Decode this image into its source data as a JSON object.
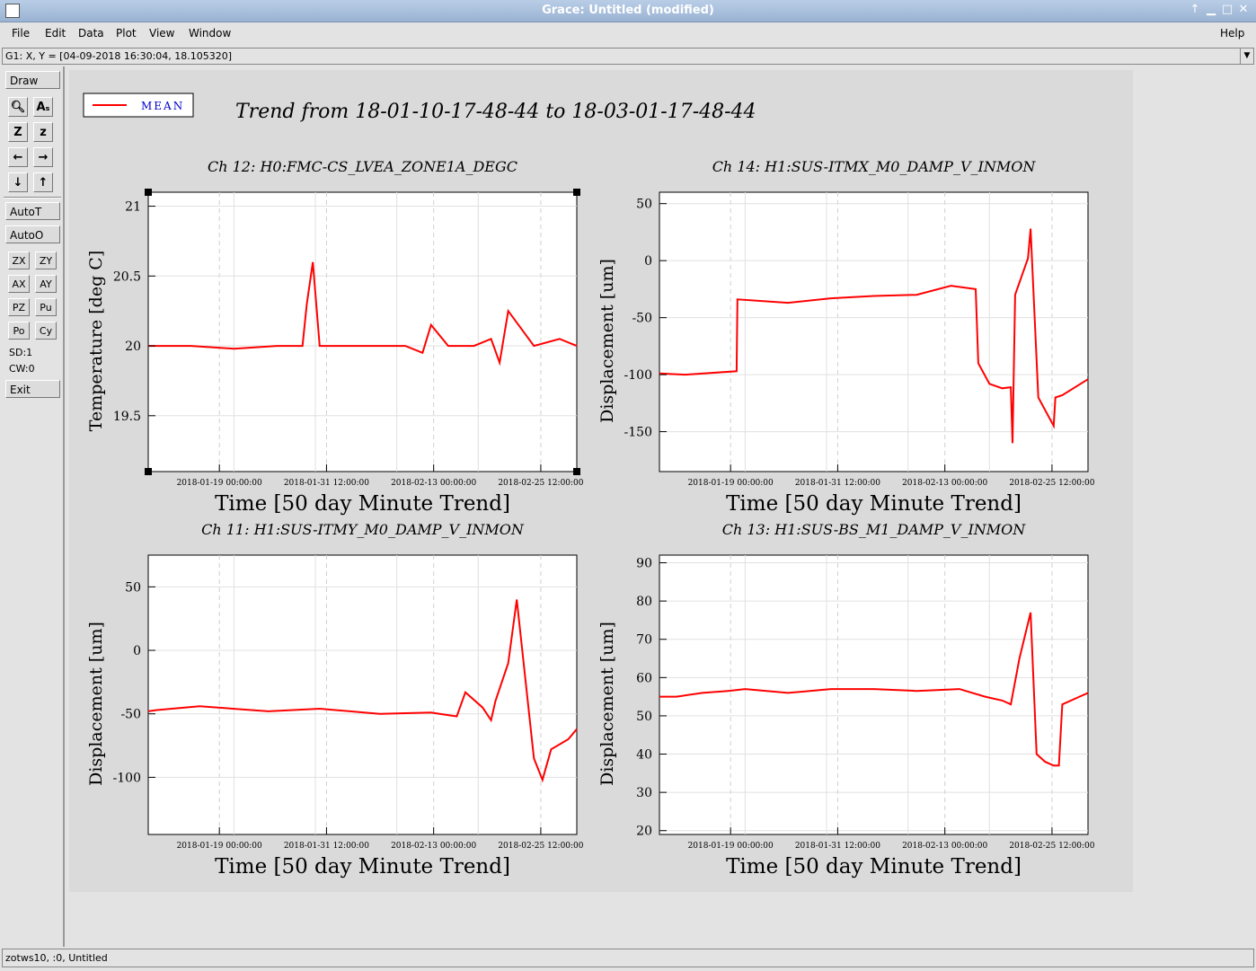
{
  "window": {
    "title": "Grace: Untitled (modified)"
  },
  "menu": {
    "file": "File",
    "edit": "Edit",
    "data": "Data",
    "plot": "Plot",
    "view": "View",
    "window": "Window",
    "help": "Help"
  },
  "locator": "G1: X, Y = [04-09-2018 16:30:04, 18.105320]",
  "status": "zotws10, :0, Untitled",
  "toolbar": {
    "draw": "Draw",
    "autot": "AutoT",
    "autoo": "AutoO",
    "zx": "ZX",
    "zy": "ZY",
    "ax": "AX",
    "ay": "AY",
    "pz": "PZ",
    "pu": "Pu",
    "po": "Po",
    "cy": "Cy",
    "sd": "SD:1",
    "cw": "CW:0",
    "exit": "Exit"
  },
  "legend": {
    "label": "MEAN"
  },
  "page_title": "Trend from 18-01-10-17-48-44 to 18-03-01-17-48-44",
  "colors": {
    "series": "#ff0000",
    "legend_text": "#0000cc",
    "canvas": "#dadada"
  },
  "chart_data": [
    {
      "type": "line",
      "title": "Ch 12: H0:FMC-CS_LVEA_ZONE1A_DEGC",
      "xlabel": "Time [50 day Minute Trend]",
      "ylabel": "Temperature [deg C]",
      "xticks": [
        "2018-01-19 00:00:00",
        "2018-01-31 12:00:00",
        "2018-02-13 00:00:00",
        "2018-02-25 12:00:00"
      ],
      "yticks": [
        19.5,
        20,
        20.5,
        21
      ],
      "ylim": [
        19.1,
        21.1
      ],
      "xlim_days": [
        0,
        50
      ],
      "grid": true,
      "series": [
        {
          "name": "MEAN",
          "x_days": [
            0,
            5,
            10,
            15,
            18,
            18.5,
            19.2,
            20,
            25,
            30,
            32,
            33,
            35,
            38,
            40,
            41,
            42,
            45,
            48,
            50
          ],
          "values": [
            20.0,
            20.0,
            19.98,
            20.0,
            20.0,
            20.3,
            20.6,
            20.0,
            20.0,
            20.0,
            19.95,
            20.15,
            20.0,
            20.0,
            20.05,
            19.88,
            20.25,
            20.0,
            20.05,
            20.0
          ]
        }
      ]
    },
    {
      "type": "line",
      "title": "Ch 14: H1:SUS-ITMX_M0_DAMP_V_INMON",
      "xlabel": "Time [50 day Minute Trend]",
      "ylabel": "Displacement [um]",
      "xticks": [
        "2018-01-19 00:00:00",
        "2018-01-31 12:00:00",
        "2018-02-13 00:00:00",
        "2018-02-25 12:00:00"
      ],
      "yticks": [
        -150,
        -100,
        -50,
        0,
        50
      ],
      "ylim": [
        -185,
        60
      ],
      "xlim_days": [
        0,
        50
      ],
      "grid": true,
      "series": [
        {
          "name": "MEAN",
          "x_days": [
            0,
            3,
            9,
            9.1,
            15,
            20,
            25,
            30,
            34,
            36.9,
            37.2,
            38.5,
            40,
            41,
            41.2,
            41.5,
            43,
            43.3,
            44.2,
            46,
            46.2,
            47,
            50
          ],
          "values": [
            -99,
            -100,
            -97,
            -34,
            -37,
            -33,
            -31,
            -30,
            -22,
            -25,
            -90,
            -108,
            -112,
            -111,
            -160,
            -30,
            2,
            28,
            -120,
            -145,
            -120,
            -118,
            -104
          ]
        }
      ]
    },
    {
      "type": "line",
      "title": "Ch 11: H1:SUS-ITMY_M0_DAMP_V_INMON",
      "xlabel": "Time [50 day Minute Trend]",
      "ylabel": "Displacement [um]",
      "xticks": [
        "2018-01-19 00:00:00",
        "2018-01-31 12:00:00",
        "2018-02-13 00:00:00",
        "2018-02-25 12:00:00"
      ],
      "yticks": [
        -100,
        -50,
        0,
        50
      ],
      "ylim": [
        -145,
        75
      ],
      "xlim_days": [
        0,
        50
      ],
      "grid": true,
      "series": [
        {
          "name": "MEAN",
          "x_days": [
            0,
            1,
            6,
            14,
            20,
            27,
            33,
            34,
            36,
            37,
            39,
            40,
            40.5,
            42,
            43,
            45,
            46,
            47,
            49,
            50
          ],
          "values": [
            -48,
            -47,
            -44,
            -48,
            -46,
            -50,
            -49,
            -50,
            -52,
            -33,
            -45,
            -55,
            -40,
            -10,
            40,
            -85,
            -102,
            -78,
            -70,
            -62
          ]
        }
      ]
    },
    {
      "type": "line",
      "title": "Ch 13: H1:SUS-BS_M1_DAMP_V_INMON",
      "xlabel": "Time [50 day Minute Trend]",
      "ylabel": "Displacement [um]",
      "xticks": [
        "2018-01-19 00:00:00",
        "2018-01-31 12:00:00",
        "2018-02-13 00:00:00",
        "2018-02-25 12:00:00"
      ],
      "yticks": [
        20,
        30,
        40,
        50,
        60,
        70,
        80,
        90
      ],
      "ylim": [
        19,
        92
      ],
      "xlim_days": [
        0,
        50
      ],
      "grid": true,
      "series": [
        {
          "name": "MEAN",
          "x_days": [
            0,
            2,
            5,
            8,
            10,
            15,
            20,
            25,
            30,
            35,
            38,
            40,
            41,
            42,
            43.3,
            44,
            45,
            46,
            46.6,
            47,
            49,
            50
          ],
          "values": [
            55,
            55,
            56,
            56.5,
            57,
            56,
            57,
            57,
            56.5,
            57,
            55,
            54,
            53,
            65,
            77,
            40,
            38,
            37,
            37,
            53,
            55,
            56
          ]
        }
      ]
    }
  ]
}
